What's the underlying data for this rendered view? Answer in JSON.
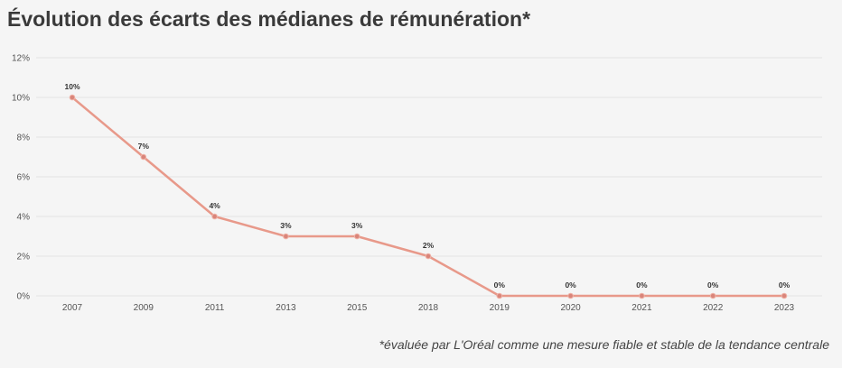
{
  "chart_data": {
    "type": "line",
    "title": "Évolution des écarts des médianes de rémunération*",
    "categories": [
      "2007",
      "2009",
      "2011",
      "2013",
      "2015",
      "2018",
      "2019",
      "2020",
      "2021",
      "2022",
      "2023"
    ],
    "values": [
      10,
      7,
      4,
      3,
      3,
      2,
      0,
      0,
      0,
      0,
      0
    ],
    "data_labels": [
      "10%",
      "7%",
      "4%",
      "3%",
      "3%",
      "2%",
      "0%",
      "0%",
      "0%",
      "0%",
      "0%"
    ],
    "y_ticks": [
      "0%",
      "2%",
      "4%",
      "6%",
      "8%",
      "10%",
      "12%"
    ],
    "ylim": [
      0,
      12
    ],
    "unit": "%",
    "grid": true,
    "legend": "none",
    "line_color": "#e8998a",
    "footnote": "*évaluée par L'Oréal comme une mesure fiable et stable de la tendance centrale"
  }
}
